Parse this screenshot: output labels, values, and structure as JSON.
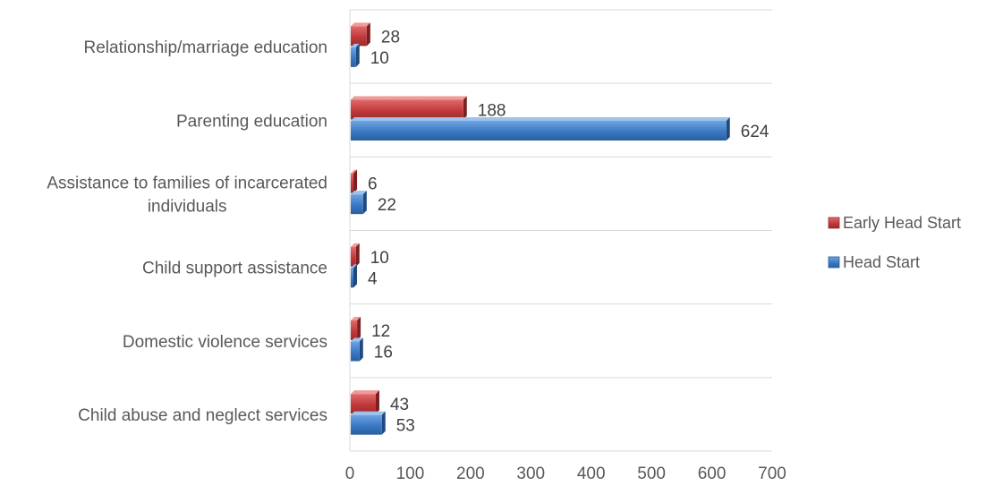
{
  "chart_data": {
    "type": "bar",
    "orientation": "horizontal",
    "title": "",
    "xlabel": "",
    "ylabel": "",
    "categories": [
      "Relationship/marriage education",
      "Parenting education",
      "Assistance to families of incarcerated individuals",
      "Child support assistance",
      "Domestic violence services",
      "Child abuse and neglect services"
    ],
    "category_lines": [
      [
        "Relationship/marriage education"
      ],
      [
        "Parenting education"
      ],
      [
        "Assistance to families of incarcerated",
        "individuals"
      ],
      [
        "Child support assistance"
      ],
      [
        "Domestic violence services"
      ],
      [
        "Child abuse and neglect services"
      ]
    ],
    "series": [
      {
        "name": "Early Head Start",
        "color": "#c0393b",
        "values": [
          28,
          188,
          6,
          10,
          12,
          43
        ]
      },
      {
        "name": "Head Start",
        "color": "#3b78c4",
        "values": [
          10,
          624,
          22,
          4,
          16,
          53
        ]
      }
    ],
    "xlim": [
      0,
      700
    ],
    "xticks": [
      0,
      100,
      200,
      300,
      400,
      500,
      600,
      700
    ],
    "grid": true,
    "legend": {
      "position": "right"
    }
  }
}
